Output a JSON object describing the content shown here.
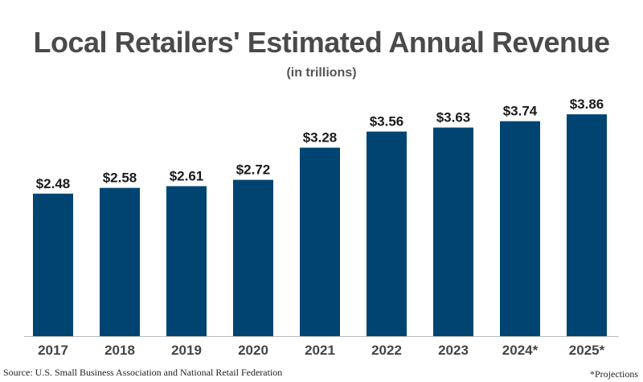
{
  "header": {
    "title": "Local Retailers' Estimated Annual Revenue",
    "subtitle": "(in trillions)"
  },
  "footer": {
    "source": "Source: U.S. Small Business Association and National Retail Federation",
    "note": "*Projections"
  },
  "colors": {
    "bar": "#004472",
    "baseline": "#bbbbbb"
  },
  "chart_data": {
    "type": "bar",
    "title": "Local Retailers' Estimated Annual Revenue",
    "subtitle": "(in trillions)",
    "xlabel": "",
    "ylabel": "",
    "categories": [
      "2017",
      "2018",
      "2019",
      "2020",
      "2021",
      "2022",
      "2023",
      "2024*",
      "2025*"
    ],
    "values": [
      2.48,
      2.58,
      2.61,
      2.72,
      3.28,
      3.56,
      3.63,
      3.74,
      3.86
    ],
    "value_labels": [
      "$2.48",
      "$2.58",
      "$2.61",
      "$2.72",
      "$3.28",
      "$3.56",
      "$3.63",
      "$3.74",
      "$3.86"
    ],
    "ylim": [
      0,
      4.1
    ],
    "grid": false,
    "legend": "none"
  }
}
